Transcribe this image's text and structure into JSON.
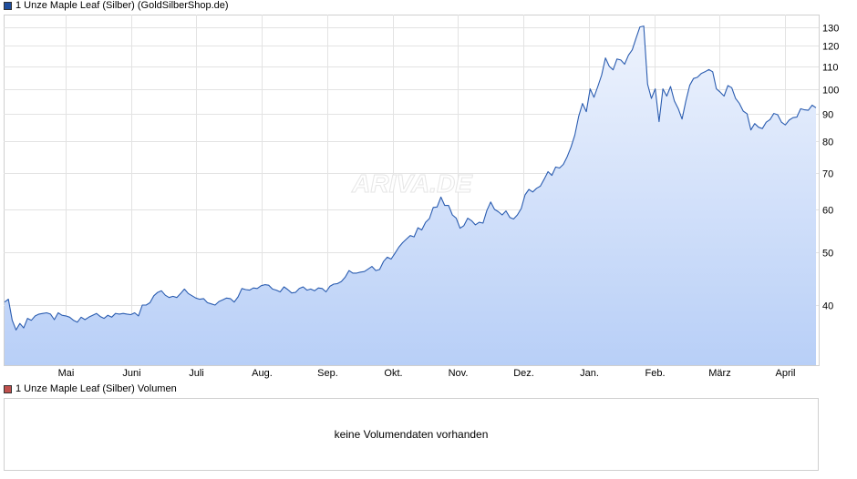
{
  "legend": {
    "price_label": "1 Unze Maple Leaf (Silber) (GoldSilberShop.de)",
    "price_color": "#1f4e9e",
    "volume_label": "1 Unze Maple Leaf (Silber) Volumen",
    "volume_color": "#c0504d"
  },
  "watermark": "ARIVA.DE",
  "volume_message": "keine Volumendaten vorhanden",
  "chart_data": {
    "type": "area",
    "scale": "log",
    "ylim": [
      31,
      137
    ],
    "yticks": [
      40,
      50,
      60,
      70,
      80,
      90,
      100,
      110,
      120,
      130
    ],
    "xtick_labels": [
      "Mai",
      "Juni",
      "Juli",
      "Aug.",
      "Sep.",
      "Okt.",
      "Nov.",
      "Dez.",
      "Jan.",
      "Feb.",
      "März",
      "April"
    ],
    "grid": true,
    "line_color": "#2a5cb0",
    "fill_top_color": "#eef3fd",
    "fill_bottom_color": "#b8cff7",
    "series": [
      {
        "values": [
          40.5,
          41,
          37.5,
          36,
          37,
          36.3,
          37.8,
          37.5,
          38.2,
          38.5,
          38.6,
          38.7,
          38.5,
          37.6,
          38.7,
          38.3,
          38.2,
          38,
          37.5,
          37.2,
          38,
          37.6,
          38,
          38.3,
          38.6,
          38.1,
          37.8,
          38.3,
          38,
          38.6,
          38.5,
          38.6,
          38.5,
          38.4,
          38.7,
          38.2,
          40,
          40,
          40.4,
          41.6,
          42.2,
          42.5,
          41.7,
          41.3,
          41.5,
          41.3,
          42,
          42.8,
          42,
          41.6,
          41.2,
          41,
          41.1,
          40.4,
          40.2,
          40,
          40.6,
          40.9,
          41.2,
          41.1,
          40.5,
          41.4,
          42.9,
          42.7,
          42.6,
          43,
          42.9,
          43.4,
          43.6,
          43.5,
          42.8,
          42.6,
          42.3,
          43.2,
          42.7,
          42.1,
          42.2,
          42.9,
          43.2,
          42.6,
          42.8,
          42.5,
          43,
          42.9,
          42.3,
          43.3,
          43.7,
          43.8,
          44.2,
          45,
          46.3,
          45.8,
          45.8,
          46,
          46.1,
          46.6,
          47.1,
          46.3,
          46.5,
          48.1,
          49,
          48.6,
          49.8,
          51.1,
          52.1,
          52.9,
          53.7,
          53.4,
          55.5,
          55,
          56.8,
          57.7,
          60.5,
          60.6,
          63.2,
          61,
          61,
          58.6,
          57.8,
          55.4,
          56,
          57.8,
          57.2,
          56.2,
          56.8,
          56.6,
          59.7,
          61.9,
          60,
          59.4,
          58.6,
          59.6,
          58,
          57.6,
          58.6,
          60.2,
          63.8,
          65.3,
          64.6,
          65.6,
          66.2,
          68.2,
          70.4,
          69.3,
          71.8,
          71.5,
          72.6,
          75,
          78.1,
          82.2,
          89,
          94,
          90.8,
          100,
          96.5,
          101,
          106,
          114,
          110,
          108.4,
          113.5,
          113,
          111,
          115.3,
          118,
          124,
          130,
          130.5,
          102,
          96,
          100,
          87,
          100,
          97,
          101,
          95,
          92,
          88,
          95,
          101.5,
          104.5,
          105,
          106.7,
          107.5,
          108.5,
          107.5,
          100,
          98.6,
          97,
          101.4,
          100.5,
          96,
          94,
          91,
          90,
          84,
          86.3,
          85,
          84.5,
          86.8,
          87.8,
          90.1,
          89.6,
          86.8,
          85.8,
          87.6,
          88.5,
          88.7,
          91.9,
          91.5,
          91.3,
          93.3,
          92.3
        ]
      }
    ]
  }
}
